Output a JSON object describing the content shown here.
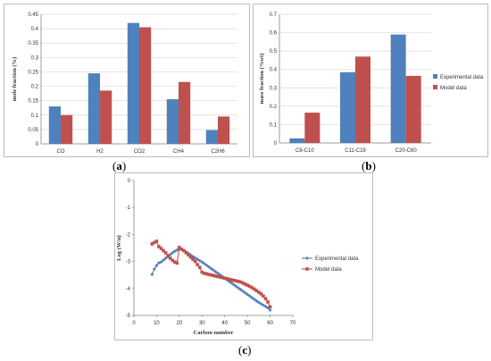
{
  "captions": {
    "a": "a",
    "b": "b",
    "c": "c"
  },
  "colors": {
    "experimental": "#4f81bd",
    "model": "#c0504d",
    "grid": "#d9d9d9",
    "axis": "#868686"
  },
  "chart_data": [
    {
      "id": "a",
      "type": "bar",
      "ylabel": "mole fraction (%)",
      "xlabel": "",
      "ylim": [
        0,
        0.45
      ],
      "yticks": [
        "0",
        "0.05",
        "0.1",
        "0.15",
        "0.2",
        "0.25",
        "0.3",
        "0.35",
        "0.4",
        "0.45"
      ],
      "categories": [
        "CO",
        "H2",
        "CO2",
        "CH4",
        "C2H6"
      ],
      "series": [
        {
          "name": "Experimental data",
          "values": [
            0.13,
            0.245,
            0.42,
            0.155,
            0.048
          ]
        },
        {
          "name": "Model data",
          "values": [
            0.1,
            0.185,
            0.405,
            0.215,
            0.095
          ]
        }
      ],
      "grid": true,
      "legend": "none"
    },
    {
      "id": "b",
      "type": "bar",
      "ylabel": "mass fraction (%wt)",
      "xlabel": "",
      "ylim": [
        0,
        0.7
      ],
      "yticks": [
        "0",
        "0.1",
        "0.2",
        "0.3",
        "0.4",
        "0.5",
        "0.6",
        "0.7"
      ],
      "categories": [
        "C8-C10",
        "C11-C19",
        "C20-C60"
      ],
      "series": [
        {
          "name": "Experimental data",
          "values": [
            0.025,
            0.385,
            0.59
          ]
        },
        {
          "name": "Model data",
          "values": [
            0.165,
            0.47,
            0.365
          ]
        }
      ],
      "grid": true,
      "legend": "right"
    },
    {
      "id": "c",
      "type": "scatter",
      "ylabel": "Log (W/n)",
      "xlabel": "Carbon number",
      "xlim": [
        0,
        70
      ],
      "ylim": [
        -5,
        0
      ],
      "xticks": [
        "0",
        "10",
        "20",
        "30",
        "40",
        "50",
        "60",
        "70"
      ],
      "yticks": [
        "0",
        "-1",
        "-2",
        "-3",
        "-4",
        "-5"
      ],
      "series": [
        {
          "name": "Experimental data",
          "marker": "diamond",
          "x": [
            8,
            9,
            10,
            11,
            12,
            13,
            14,
            15,
            16,
            17,
            18,
            19,
            20,
            21,
            22,
            23,
            24,
            25,
            26,
            27,
            28,
            29,
            30,
            31,
            32,
            33,
            34,
            35,
            36,
            37,
            38,
            39,
            40,
            41,
            42,
            43,
            44,
            45,
            46,
            47,
            48,
            49,
            50,
            51,
            52,
            53,
            54,
            55,
            56,
            57,
            58,
            59,
            60
          ],
          "y": [
            -3.48,
            -3.28,
            -3.15,
            -3.05,
            -3.02,
            -2.95,
            -2.88,
            -2.82,
            -2.75,
            -2.68,
            -2.62,
            -2.58,
            -2.52,
            -2.55,
            -2.6,
            -2.65,
            -2.7,
            -2.76,
            -2.82,
            -2.87,
            -2.92,
            -2.97,
            -3.02,
            -3.08,
            -3.14,
            -3.2,
            -3.26,
            -3.32,
            -3.38,
            -3.44,
            -3.5,
            -3.56,
            -3.62,
            -3.68,
            -3.74,
            -3.8,
            -3.86,
            -3.92,
            -3.98,
            -4.04,
            -4.1,
            -4.16,
            -4.22,
            -4.28,
            -4.34,
            -4.4,
            -4.46,
            -4.52,
            -4.57,
            -4.62,
            -4.67,
            -4.72,
            -4.8
          ]
        },
        {
          "name": "Model data",
          "marker": "square",
          "x": [
            8,
            9,
            10,
            11,
            12,
            13,
            14,
            15,
            16,
            17,
            18,
            19,
            20,
            21,
            22,
            23,
            24,
            25,
            26,
            27,
            28,
            29,
            30,
            31,
            32,
            33,
            34,
            35,
            36,
            37,
            38,
            39,
            40,
            41,
            42,
            43,
            44,
            45,
            46,
            47,
            48,
            49,
            50,
            51,
            52,
            53,
            54,
            55,
            56,
            57,
            58,
            59,
            60
          ],
          "y": [
            -2.35,
            -2.3,
            -2.25,
            -2.45,
            -2.52,
            -2.6,
            -2.68,
            -2.78,
            -2.88,
            -2.96,
            -3.02,
            -3.06,
            -2.48,
            -2.55,
            -2.6,
            -2.68,
            -2.76,
            -2.84,
            -2.92,
            -3.0,
            -3.12,
            -3.22,
            -3.4,
            -3.44,
            -3.46,
            -3.48,
            -3.5,
            -3.52,
            -3.54,
            -3.56,
            -3.58,
            -3.6,
            -3.62,
            -3.64,
            -3.66,
            -3.68,
            -3.7,
            -3.72,
            -3.74,
            -3.76,
            -3.8,
            -3.84,
            -3.88,
            -3.92,
            -3.97,
            -4.02,
            -4.08,
            -4.14,
            -4.2,
            -4.28,
            -4.38,
            -4.5,
            -4.68
          ]
        }
      ],
      "grid": false,
      "legend": "right"
    }
  ]
}
